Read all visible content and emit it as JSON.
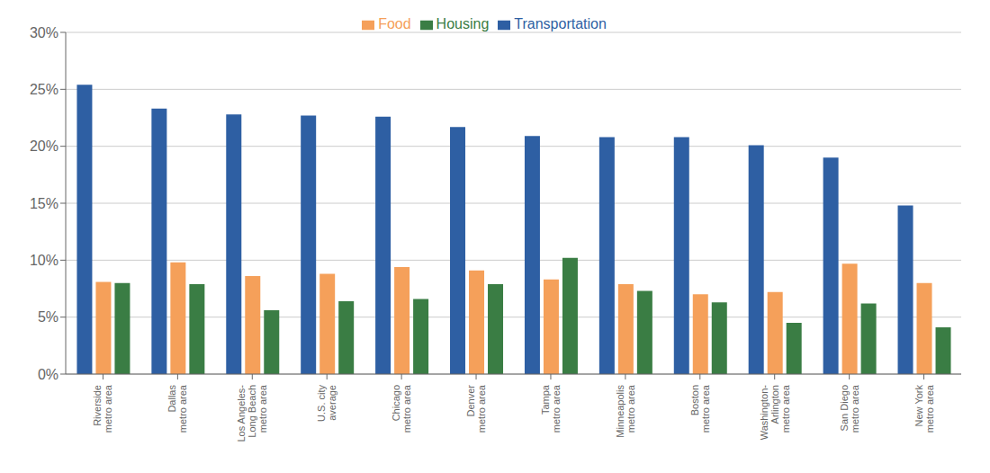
{
  "chart_data": {
    "type": "bar",
    "categories": [
      "Riverside\nmetro area",
      "Dallas\nmetro area",
      "Los Angeles-\nLong Beach\nmetro area",
      "U.S. city\naverage",
      "Chicago\nmetro area",
      "Denver\nmetro area",
      "Tampa\nmetro area",
      "Minneapolis\nmetro area",
      "Boston\nmetro area",
      "Washington-\nArlington\nmetro area",
      "San Diego\nmetro area",
      "New York\nmetro area"
    ],
    "series": [
      {
        "name": "Transportation",
        "color": "#2E5FA3",
        "values": [
          25.4,
          23.3,
          22.8,
          22.7,
          22.6,
          21.7,
          20.9,
          20.8,
          20.8,
          20.1,
          19.0,
          14.8
        ]
      },
      {
        "name": "Food",
        "color": "#F5A05A",
        "values": [
          8.1,
          9.8,
          8.6,
          8.8,
          9.4,
          9.1,
          8.3,
          7.9,
          7.0,
          7.2,
          9.7,
          8.0
        ]
      },
      {
        "name": "Housing",
        "color": "#3A7D44",
        "values": [
          8.0,
          7.9,
          5.6,
          6.4,
          6.6,
          7.9,
          10.2,
          7.3,
          6.3,
          4.5,
          6.2,
          4.1
        ]
      }
    ],
    "ylim": [
      0,
      30
    ],
    "yticks": [
      {
        "value": 0,
        "label": "0%"
      },
      {
        "value": 5,
        "label": "5%"
      },
      {
        "value": 10,
        "label": "10%"
      },
      {
        "value": 15,
        "label": "15%"
      },
      {
        "value": 20,
        "label": "20%"
      },
      {
        "value": 25,
        "label": "25%"
      },
      {
        "value": 30,
        "label": "30%"
      }
    ],
    "grid": true,
    "legend": "top"
  }
}
